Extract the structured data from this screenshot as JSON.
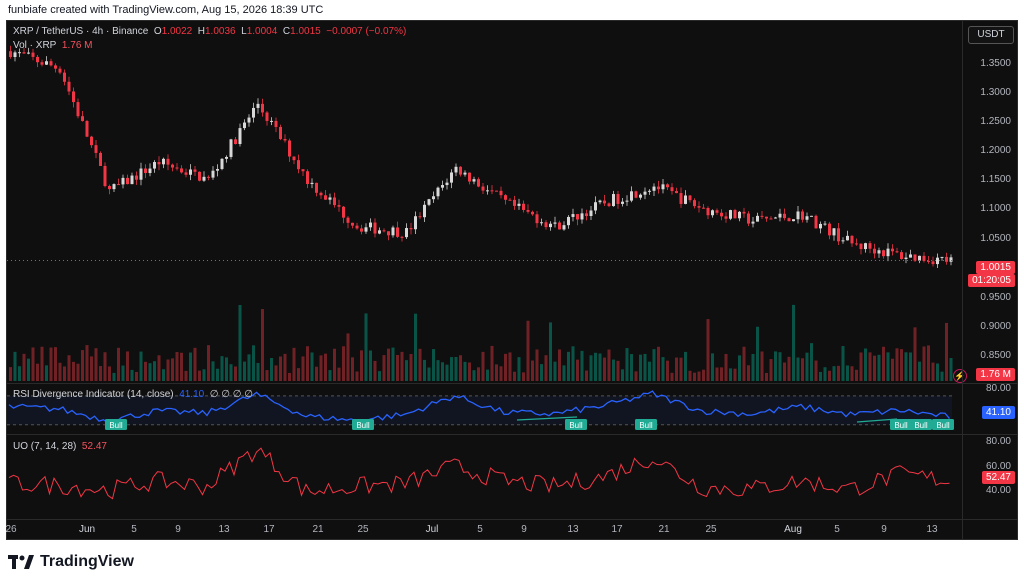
{
  "created_line": "funbiafe created with TradingView.com, Aug 15, 2026 18:39 UTC",
  "brand": "TradingView",
  "quote_currency": "USDT",
  "colors": {
    "up": "#089981",
    "down": "#f23645",
    "rsi": "#2962ff",
    "uo": "#f23645",
    "bull": "#22ab94",
    "background": "#0f0f0f"
  },
  "icons": [
    "tradingview-logo-icon",
    "lightning-icon"
  ],
  "header": {
    "symbol": "XRP / TetherUS · 4h · Binance",
    "o_label": "O",
    "o_value": "1.0022",
    "h_label": "H",
    "h_value": "1.0036",
    "l_label": "L",
    "l_value": "1.0004",
    "c_label": "C",
    "c_value": "1.0015",
    "change": "−0.0007 (−0.07%)",
    "vol_label": "Vol · XRP",
    "vol_value": "1.76 M"
  },
  "price_axis": {
    "ticks": [
      "1.3500",
      "1.3000",
      "1.2500",
      "1.2000",
      "1.1500",
      "1.1000",
      "1.0500",
      "0.9500",
      "0.9000",
      "0.8500"
    ],
    "last_price": "1.0015",
    "countdown": "01:20:05",
    "volume_tag": "1.76 M"
  },
  "rsi": {
    "title": "RSI Divergence Indicator (14, close)",
    "value": "41.10",
    "placeholders": "∅ ∅ ∅ ∅",
    "axis_top": "80.00",
    "tag": "41.10",
    "bull_label": "Bull"
  },
  "uo": {
    "title": "UO (7, 14, 28)",
    "value": "52.47",
    "axis": [
      "80.00",
      "60.00",
      "40.00"
    ],
    "tag": "52.47"
  },
  "x_axis": [
    "26",
    "Jun",
    "5",
    "9",
    "13",
    "17",
    "21",
    "25",
    "Jul",
    "5",
    "9",
    "13",
    "17",
    "21",
    "25",
    "Aug",
    "5",
    "9",
    "13"
  ],
  "chart_data": {
    "type": "candlestick",
    "title": "XRP / TetherUS · 4h · Binance",
    "xlabel": "",
    "ylabel": "",
    "ylim": [
      0.82,
      1.39
    ],
    "x": [
      "May 26",
      "Jun 1",
      "Jun 5",
      "Jun 9",
      "Jun 13",
      "Jun 17",
      "Jun 21",
      "Jun 25",
      "Jul 1",
      "Jul 5",
      "Jul 9",
      "Jul 13",
      "Jul 17",
      "Jul 21",
      "Jul 25",
      "Aug 1",
      "Aug 5",
      "Aug 9",
      "Aug 13",
      "Aug 15"
    ],
    "close": [
      1.36,
      1.33,
      1.12,
      1.17,
      1.14,
      1.27,
      1.14,
      1.06,
      1.05,
      1.16,
      1.1,
      1.06,
      1.1,
      1.13,
      1.09,
      1.07,
      1.08,
      1.03,
      1.01,
      1.0015
    ],
    "rsi": [
      55,
      52,
      36,
      49,
      46,
      72,
      42,
      36,
      44,
      70,
      47,
      45,
      56,
      73,
      49,
      45,
      55,
      44,
      50,
      41.1
    ],
    "rsi_ylim": [
      20,
      85
    ],
    "uo": [
      50,
      49,
      45,
      52,
      48,
      76,
      44,
      48,
      50,
      63,
      52,
      48,
      55,
      70,
      47,
      46,
      52,
      46,
      57,
      52.47
    ],
    "uo_ylim": [
      25,
      85
    ],
    "rsi_signals": [
      {
        "label": "Bull",
        "x": "Jun 3"
      },
      {
        "label": "Bull",
        "x": "Jun 25"
      },
      {
        "label": "Bull",
        "x": "Jul 15"
      },
      {
        "label": "Bull",
        "x": "Jul 22"
      },
      {
        "label": "Bull",
        "x": "Aug 10"
      },
      {
        "label": "Bull",
        "x": "Aug 12"
      },
      {
        "label": "Bull",
        "x": "Aug 14"
      }
    ],
    "volume_last": "1.76 M",
    "grid": false,
    "legend": "top-left"
  }
}
